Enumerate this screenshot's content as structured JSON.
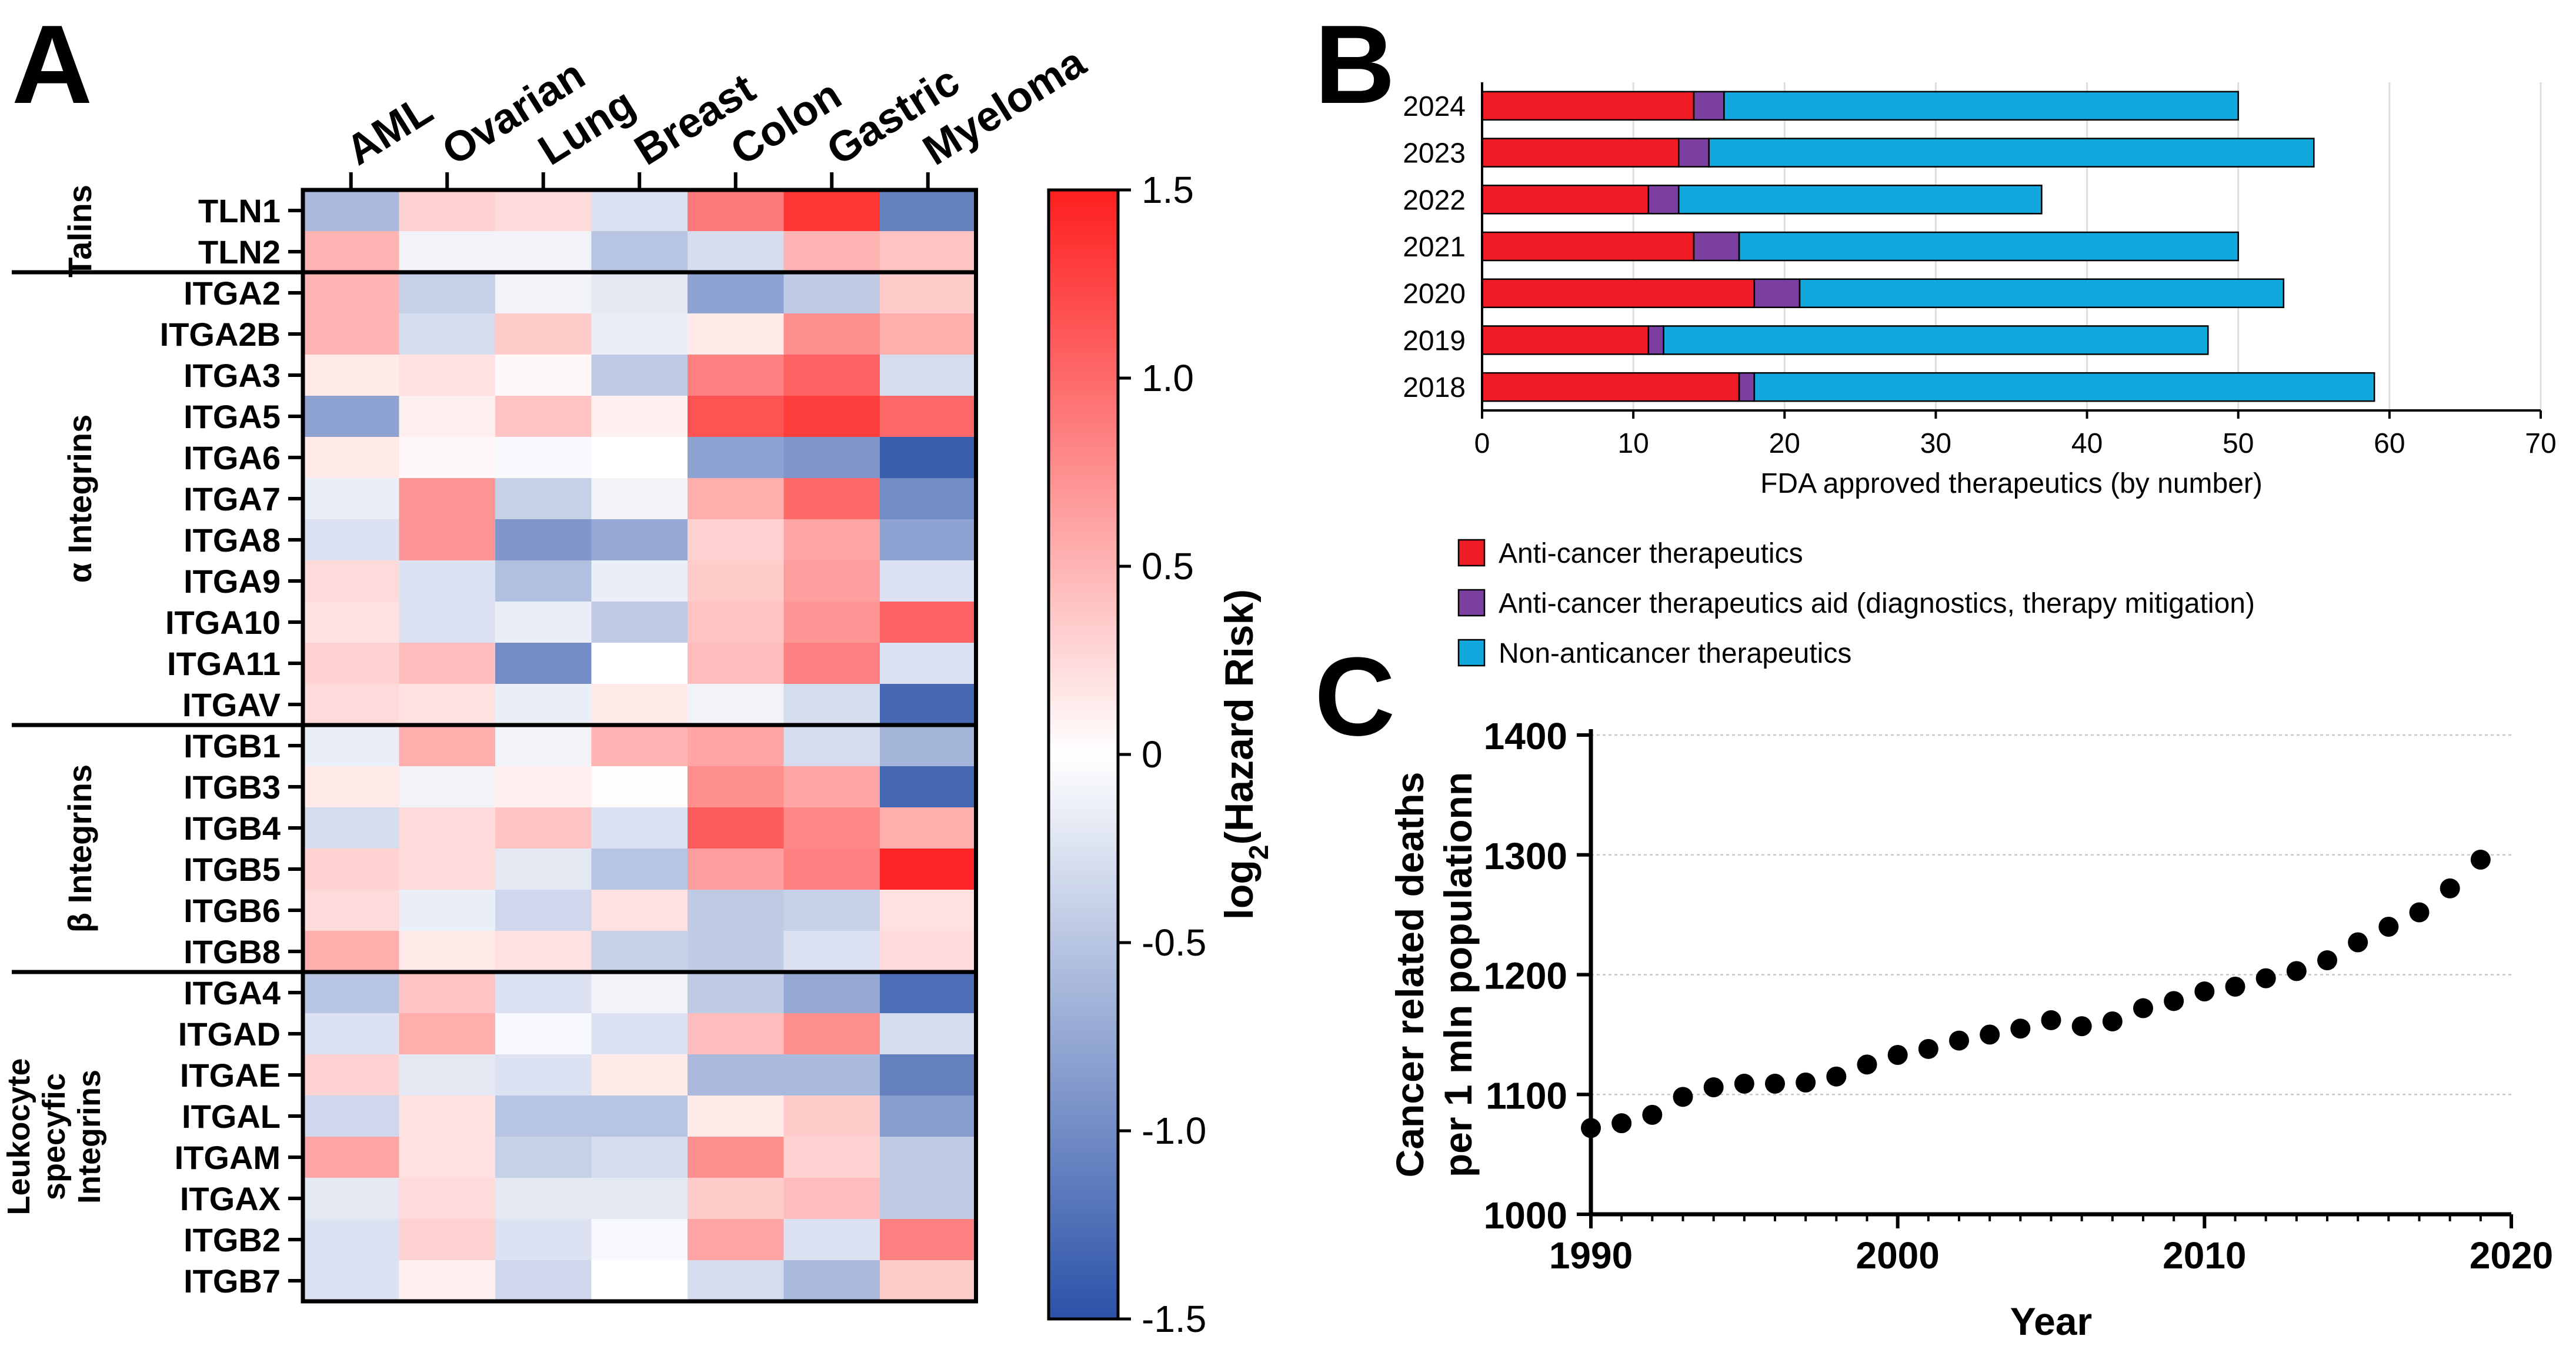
{
  "panels": {
    "a": "A",
    "b": "B",
    "c": "C"
  },
  "chart_data": [
    {
      "type": "heatmap",
      "panel": "A",
      "columns": [
        "AML",
        "Ovarian",
        "Lung",
        "Breast",
        "Colon",
        "Gastric",
        "Myeloma"
      ],
      "rows": [
        "TLN1",
        "TLN2",
        "ITGA2",
        "ITGA2B",
        "ITGA3",
        "ITGA5",
        "ITGA6",
        "ITGA7",
        "ITGA8",
        "ITGA9",
        "ITGA10",
        "ITGA11",
        "ITGAV",
        "ITGB1",
        "ITGB3",
        "ITGB4",
        "ITGB5",
        "ITGB6",
        "ITGB8",
        "ITGA4",
        "ITGAD",
        "ITGAE",
        "ITGAL",
        "ITGAM",
        "ITGAX",
        "ITGB2",
        "ITGB7"
      ],
      "groups": [
        {
          "label": "Talins",
          "start": 0,
          "end": 1
        },
        {
          "label": "α Integrins",
          "start": 2,
          "end": 12
        },
        {
          "label": "β Integrins",
          "start": 13,
          "end": 18
        },
        {
          "label": "Leukocyte specyfic Integrins",
          "lines": [
            "Leukocyte",
            "specyfic",
            "Integrins"
          ],
          "start": 19,
          "end": 26
        }
      ],
      "values": [
        [
          -0.6,
          0.3,
          0.25,
          -0.25,
          0.9,
          1.35,
          -1.1
        ],
        [
          0.5,
          -0.1,
          -0.1,
          -0.5,
          -0.3,
          0.5,
          0.4
        ],
        [
          0.5,
          -0.4,
          -0.1,
          -0.2,
          -0.8,
          -0.45,
          0.35
        ],
        [
          0.5,
          -0.3,
          0.35,
          -0.15,
          0.15,
          0.75,
          0.55
        ],
        [
          0.15,
          0.2,
          0.05,
          -0.45,
          0.85,
          1.05,
          -0.3
        ],
        [
          -0.8,
          0.1,
          0.4,
          0.1,
          1.15,
          1.3,
          1.0
        ],
        [
          0.15,
          0.05,
          -0.05,
          0.0,
          -0.8,
          -0.9,
          -1.4
        ],
        [
          -0.15,
          0.7,
          -0.4,
          -0.1,
          0.55,
          1.0,
          -1.0
        ],
        [
          -0.25,
          0.7,
          -0.9,
          -0.75,
          0.3,
          0.6,
          -0.8
        ],
        [
          0.25,
          -0.25,
          -0.55,
          -0.15,
          0.35,
          0.65,
          -0.25
        ],
        [
          0.2,
          -0.25,
          -0.15,
          -0.45,
          0.4,
          0.7,
          1.05
        ],
        [
          0.3,
          0.45,
          -1.0,
          0.0,
          0.45,
          0.85,
          -0.25
        ],
        [
          0.25,
          0.2,
          -0.15,
          0.15,
          -0.1,
          -0.3,
          -1.3
        ],
        [
          -0.15,
          0.55,
          -0.1,
          0.5,
          0.6,
          -0.3,
          -0.65
        ],
        [
          0.15,
          -0.1,
          0.1,
          0.02,
          0.75,
          0.6,
          -1.3
        ],
        [
          -0.3,
          0.25,
          0.4,
          -0.25,
          1.1,
          0.8,
          0.55
        ],
        [
          0.3,
          0.25,
          -0.2,
          -0.5,
          0.65,
          0.85,
          1.45
        ],
        [
          0.25,
          -0.15,
          -0.35,
          0.2,
          -0.45,
          -0.4,
          0.2
        ],
        [
          0.55,
          0.15,
          0.2,
          -0.4,
          -0.45,
          -0.25,
          0.25
        ],
        [
          -0.5,
          0.4,
          -0.25,
          -0.1,
          -0.45,
          -0.75,
          -1.25
        ],
        [
          -0.25,
          0.55,
          -0.05,
          -0.25,
          0.45,
          0.75,
          -0.3
        ],
        [
          0.3,
          -0.2,
          -0.25,
          0.15,
          -0.6,
          -0.6,
          -1.1
        ],
        [
          -0.35,
          0.2,
          -0.5,
          -0.5,
          0.15,
          0.35,
          -0.85
        ],
        [
          0.6,
          0.2,
          -0.4,
          -0.3,
          0.75,
          0.3,
          -0.45
        ],
        [
          -0.2,
          0.25,
          -0.2,
          -0.2,
          0.35,
          0.45,
          -0.45
        ],
        [
          -0.25,
          0.3,
          -0.25,
          -0.05,
          0.6,
          -0.25,
          0.85
        ],
        [
          -0.25,
          0.1,
          -0.35,
          0.0,
          -0.3,
          -0.6,
          0.35
        ]
      ],
      "colorbar": {
        "label_prefix": "log",
        "label_sub": "2",
        "label_suffix": "(Hazard Risk)",
        "min": -1.5,
        "max": 1.5,
        "ticks": [
          "1.5",
          "1.0",
          "0.5",
          "0",
          "-0.5",
          "-1.0",
          "-1.5"
        ],
        "tick_values": [
          1.5,
          1.0,
          0.5,
          0,
          -0.5,
          -1.0,
          -1.5
        ],
        "low_color": "#2b52a8",
        "mid_color": "#ffffff",
        "high_color": "#fe1f1f"
      }
    },
    {
      "type": "bar",
      "stacked": true,
      "orientation": "horizontal",
      "panel": "B",
      "categories": [
        "2024",
        "2023",
        "2022",
        "2021",
        "2020",
        "2019",
        "2018"
      ],
      "series": [
        {
          "name": "Anti-cancer therapeutics",
          "color": "#ee1c25",
          "values": [
            14,
            13,
            11,
            14,
            18,
            11,
            17
          ]
        },
        {
          "name": "Anti-cancer therapeutics aid (diagnostics, therapy mitigation)",
          "color": "#7b3fa0",
          "values": [
            2,
            2,
            2,
            3,
            3,
            1,
            1
          ]
        },
        {
          "name": "Non-anticancer therapeutics",
          "color": "#12a8dd",
          "values": [
            34,
            40,
            24,
            33,
            32,
            36,
            41
          ]
        }
      ],
      "xlabel": "FDA approved therapeutics (by number)",
      "xlim": [
        0,
        70
      ],
      "xticks": [
        "0",
        "10",
        "20",
        "30",
        "40",
        "50",
        "60",
        "70"
      ],
      "xtick_values": [
        0,
        10,
        20,
        30,
        40,
        50,
        60,
        70
      ],
      "grid": true,
      "legend": "below"
    },
    {
      "type": "scatter",
      "panel": "C",
      "x": [
        1990,
        1991,
        1992,
        1993,
        1994,
        1995,
        1996,
        1997,
        1998,
        1999,
        2000,
        2001,
        2002,
        2003,
        2004,
        2005,
        2006,
        2007,
        2008,
        2009,
        2010,
        2011,
        2012,
        2013,
        2014,
        2015,
        2016,
        2017,
        2018,
        2019
      ],
      "y": [
        1072,
        1076,
        1083,
        1098,
        1106,
        1109,
        1109,
        1110,
        1115,
        1125,
        1133,
        1138,
        1145,
        1150,
        1155,
        1162,
        1157,
        1161,
        1172,
        1178,
        1186,
        1190,
        1197,
        1203,
        1212,
        1227,
        1240,
        1252,
        1272,
        1296
      ],
      "ylabel_lines": [
        "Cancer related deaths",
        "per 1 mln populationn"
      ],
      "xlabel": "Year",
      "xlim": [
        1990,
        2020
      ],
      "ylim": [
        1000,
        1400
      ],
      "xticks": [
        "1990",
        "2000",
        "2010",
        "2020"
      ],
      "xtick_values": [
        1990,
        2000,
        2010,
        2020
      ],
      "yticks": [
        "1400",
        "1300",
        "1200",
        "1100",
        "1000"
      ],
      "ytick_values": [
        1400,
        1300,
        1200,
        1100,
        1000
      ],
      "grid": true
    }
  ]
}
